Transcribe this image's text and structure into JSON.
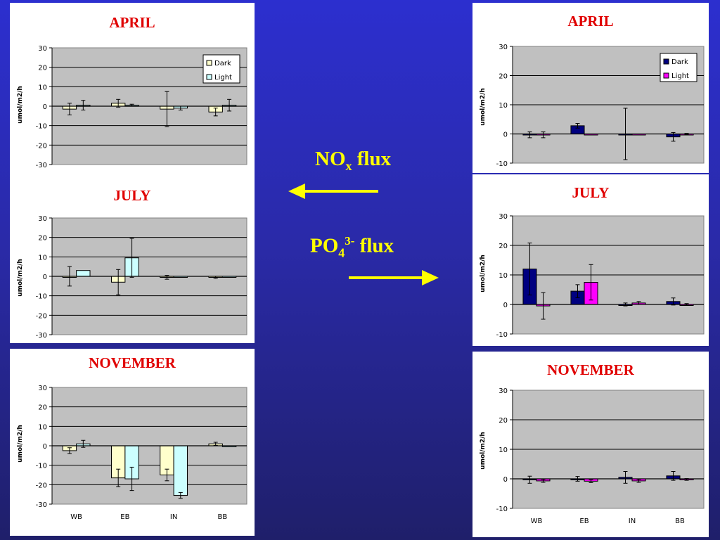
{
  "center": {
    "nox_main": "NO",
    "nox_sub": "x",
    "nox_rest": " flux",
    "po4_main": "PO",
    "po4_sub": "4",
    "po4_sup": "3-",
    "po4_rest": " flux",
    "arrow_color": "#ffff00"
  },
  "ylabel": "umol/m2/h",
  "legend": {
    "dark": "Dark",
    "light": "Light"
  },
  "categories": [
    "WB",
    "EB",
    "IN",
    "BB"
  ],
  "colors": {
    "nox_dark": "#ffffcc",
    "nox_light": "#ccffff",
    "po4_dark": "#000080",
    "po4_light": "#ff00ff",
    "plot_bg": "#c0c0c0",
    "title_red": "#e00000"
  },
  "chart_data": [
    {
      "id": "nox-april",
      "type": "bar",
      "title": "APRIL",
      "ylabel": "umol/m2/h",
      "categories": [
        "WB",
        "EB",
        "IN",
        "BB"
      ],
      "ylim": [
        -30,
        30
      ],
      "ticks": [
        30,
        20,
        10,
        0,
        -10,
        -20,
        -30
      ],
      "legend": true,
      "show_xlabels": false,
      "grid": true,
      "series": [
        {
          "name": "Dark",
          "values": [
            -1.5,
            1.5,
            -1.5,
            -3
          ],
          "err": [
            3,
            2,
            9,
            2
          ]
        },
        {
          "name": "Light",
          "values": [
            0.5,
            0.5,
            -1,
            0.5
          ],
          "err": [
            2.5,
            0.5,
            1,
            3
          ]
        }
      ]
    },
    {
      "id": "nox-july",
      "type": "bar",
      "title": "JULY",
      "ylabel": "umol/m2/h",
      "categories": [
        "WB",
        "EB",
        "IN",
        "BB"
      ],
      "ylim": [
        -30,
        30
      ],
      "ticks": [
        30,
        20,
        10,
        0,
        -10,
        -20,
        -30
      ],
      "legend": false,
      "show_xlabels": false,
      "grid": true,
      "series": [
        {
          "name": "Dark",
          "values": [
            0,
            -3,
            -0.5,
            -0.5
          ],
          "err": [
            5,
            6.5,
            1,
            0.5
          ]
        },
        {
          "name": "Light",
          "values": [
            3,
            9.5,
            0,
            0
          ],
          "err": [
            0,
            10,
            0,
            0
          ]
        }
      ]
    },
    {
      "id": "nox-november",
      "type": "bar",
      "title": "NOVEMBER",
      "ylabel": "umol/m2/h",
      "categories": [
        "WB",
        "EB",
        "IN",
        "BB"
      ],
      "ylim": [
        -30,
        30
      ],
      "ticks": [
        30,
        20,
        10,
        0,
        -10,
        -20,
        -30
      ],
      "legend": false,
      "show_xlabels": true,
      "grid": true,
      "series": [
        {
          "name": "Dark",
          "values": [
            -2.5,
            -16.5,
            -15,
            1
          ],
          "err": [
            1.5,
            4.5,
            3,
            0.8
          ]
        },
        {
          "name": "Light",
          "values": [
            1,
            -17,
            -25.5,
            0
          ],
          "err": [
            1.8,
            6,
            1.5,
            0
          ]
        }
      ]
    },
    {
      "id": "po4-april",
      "type": "bar",
      "title": "APRIL",
      "ylabel": "umol/m2/h",
      "categories": [
        "WB",
        "EB",
        "IN",
        "BB"
      ],
      "ylim": [
        -10,
        30
      ],
      "ticks": [
        30,
        20,
        10,
        0,
        -10
      ],
      "legend": true,
      "show_xlabels": false,
      "grid": true,
      "series": [
        {
          "name": "Dark",
          "values": [
            -0.3,
            2.8,
            0,
            -1
          ],
          "err": [
            1,
            0.8,
            8.8,
            1.5
          ]
        },
        {
          "name": "Light",
          "values": [
            -0.3,
            -0.3,
            -0.3,
            0
          ],
          "err": [
            1,
            0,
            0,
            0.2
          ]
        }
      ]
    },
    {
      "id": "po4-july",
      "type": "bar",
      "title": "JULY",
      "ylabel": "umol/m2/h",
      "categories": [
        "WB",
        "EB",
        "IN",
        "BB"
      ],
      "ylim": [
        -10,
        30
      ],
      "ticks": [
        30,
        20,
        10,
        0,
        -10
      ],
      "legend": false,
      "show_xlabels": false,
      "grid": true,
      "series": [
        {
          "name": "Dark",
          "values": [
            12,
            4.5,
            0,
            1
          ],
          "err": [
            8.8,
            2.2,
            0.5,
            1.2
          ]
        },
        {
          "name": "Light",
          "values": [
            -0.5,
            7.5,
            0.5,
            0
          ],
          "err": [
            4.5,
            6,
            0.5,
            0.3
          ]
        }
      ]
    },
    {
      "id": "po4-november",
      "type": "bar",
      "title": "NOVEMBER",
      "ylabel": "umol/m2/h",
      "categories": [
        "WB",
        "EB",
        "IN",
        "BB"
      ],
      "ylim": [
        -10,
        30
      ],
      "ticks": [
        30,
        20,
        10,
        0,
        -10
      ],
      "legend": false,
      "show_xlabels": true,
      "grid": true,
      "series": [
        {
          "name": "Dark",
          "values": [
            -0.3,
            0,
            0.5,
            1
          ],
          "err": [
            1.2,
            0.8,
            2,
            1.5
          ]
        },
        {
          "name": "Light",
          "values": [
            -0.7,
            -0.8,
            -0.7,
            -0.2
          ],
          "err": [
            0.5,
            0.5,
            0.5,
            0.3
          ]
        }
      ]
    }
  ]
}
